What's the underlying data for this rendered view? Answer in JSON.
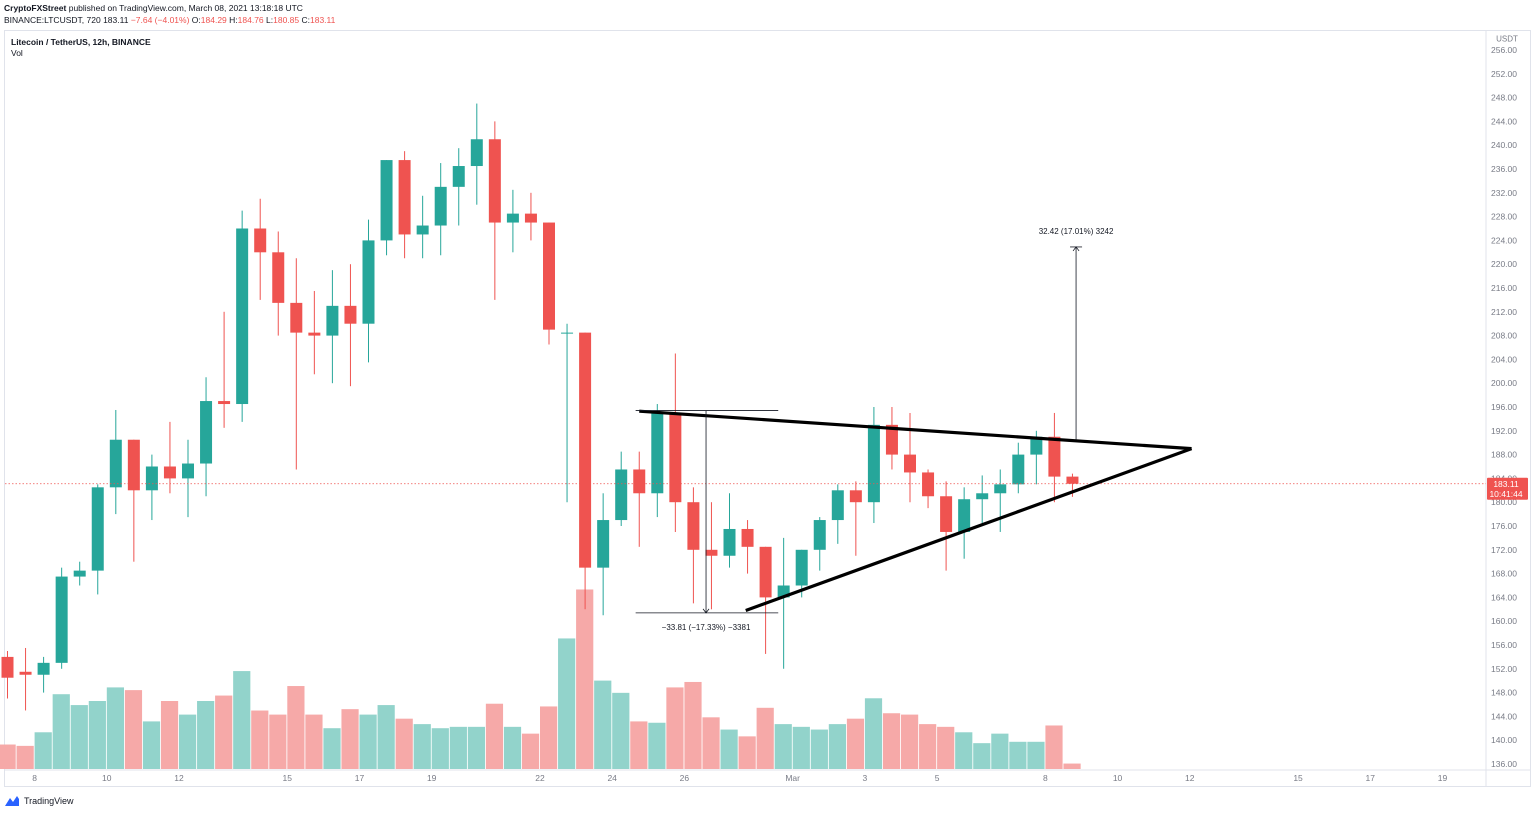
{
  "header": {
    "publisher": "CryptoFXStreet",
    "published_text": "published on TradingView.com, March 08, 2021 13:18:18 UTC",
    "symbol": "BINANCE:LTCUSDT, 720",
    "last": "183.11",
    "change": "−7.64 (−4.01%)",
    "ohlc": {
      "o_label": "O:",
      "o": "184.29",
      "h_label": "H:",
      "h": "184.76",
      "l_label": "L:",
      "l": "180.85",
      "c_label": "C:",
      "c": "183.11"
    }
  },
  "pane": {
    "title": "Litecoin / TetherUS, 12h, BINANCE",
    "vol_label": "Vol"
  },
  "footer": {
    "brand": "TradingView",
    "icon": "tradingview-logo-icon"
  },
  "colors": {
    "up": "#26a69a",
    "down": "#ef5350",
    "vol_up": "#92d3cb",
    "vol_down": "#f6a9a8",
    "price_line": "#ef5350",
    "text": "#131722",
    "axis": "#787b86"
  },
  "chart_data": {
    "type": "candlestick",
    "title": "Litecoin / TetherUS, 12h, BINANCE",
    "currency": "USDT",
    "ylim": [
      136,
      256
    ],
    "y_ticks": [
      "256.00",
      "252.00",
      "248.00",
      "244.00",
      "240.00",
      "236.00",
      "232.00",
      "228.00",
      "224.00",
      "220.00",
      "216.00",
      "212.00",
      "208.00",
      "204.00",
      "200.00",
      "196.00",
      "192.00",
      "188.00",
      "184.00",
      "180.00",
      "176.00",
      "172.00",
      "168.00",
      "164.00",
      "160.00",
      "156.00",
      "152.00",
      "148.00",
      "144.00",
      "140.00",
      "136.00"
    ],
    "x_ticks": [
      {
        "label": "8",
        "i": 1.5
      },
      {
        "label": "10",
        "i": 5.5
      },
      {
        "label": "12",
        "i": 9.5
      },
      {
        "label": "15",
        "i": 15.5
      },
      {
        "label": "17",
        "i": 19.5
      },
      {
        "label": "19",
        "i": 23.5
      },
      {
        "label": "22",
        "i": 29.5
      },
      {
        "label": "24",
        "i": 33.5
      },
      {
        "label": "26",
        "i": 37.5
      },
      {
        "label": "Mar",
        "i": 43.5
      },
      {
        "label": "3",
        "i": 47.5
      },
      {
        "label": "5",
        "i": 51.5
      },
      {
        "label": "8",
        "i": 57.5
      },
      {
        "label": "10",
        "i": 61.5
      },
      {
        "label": "12",
        "i": 65.5
      },
      {
        "label": "15",
        "i": 71.5
      },
      {
        "label": "17",
        "i": 75.5
      },
      {
        "label": "19",
        "i": 79.5
      }
    ],
    "candles": [
      {
        "o": 154,
        "h": 155,
        "l": 147,
        "c": 150.5,
        "v": 0.18
      },
      {
        "o": 151.5,
        "h": 155.5,
        "l": 145,
        "c": 151,
        "v": 0.17
      },
      {
        "o": 151,
        "h": 154,
        "l": 148,
        "c": 153,
        "v": 0.27
      },
      {
        "o": 153,
        "h": 169,
        "l": 152,
        "c": 167.5,
        "v": 0.55
      },
      {
        "o": 167.5,
        "h": 170,
        "l": 166,
        "c": 168.5,
        "v": 0.47
      },
      {
        "o": 168.5,
        "h": 183,
        "l": 164.5,
        "c": 182.5,
        "v": 0.5
      },
      {
        "o": 182.5,
        "h": 195.5,
        "l": 178,
        "c": 190.5,
        "v": 0.6
      },
      {
        "o": 190.5,
        "h": 190.5,
        "l": 170,
        "c": 182,
        "v": 0.58
      },
      {
        "o": 182,
        "h": 188,
        "l": 177,
        "c": 186,
        "v": 0.35
      },
      {
        "o": 186,
        "h": 193.5,
        "l": 181.5,
        "c": 184,
        "v": 0.5
      },
      {
        "o": 184,
        "h": 190.5,
        "l": 177.5,
        "c": 186.5,
        "v": 0.4
      },
      {
        "o": 186.5,
        "h": 201,
        "l": 181,
        "c": 197,
        "v": 0.5
      },
      {
        "o": 197,
        "h": 212,
        "l": 192.5,
        "c": 196.5,
        "v": 0.54
      },
      {
        "o": 196.5,
        "h": 229,
        "l": 193.5,
        "c": 226,
        "v": 0.72
      },
      {
        "o": 226,
        "h": 231,
        "l": 214,
        "c": 222,
        "v": 0.43
      },
      {
        "o": 222,
        "h": 225.5,
        "l": 208,
        "c": 213.5,
        "v": 0.4
      },
      {
        "o": 213.5,
        "h": 221,
        "l": 185.5,
        "c": 208.5,
        "v": 0.61
      },
      {
        "o": 208.5,
        "h": 215.5,
        "l": 201.5,
        "c": 208,
        "v": 0.4
      },
      {
        "o": 208,
        "h": 219,
        "l": 200,
        "c": 213,
        "v": 0.3
      },
      {
        "o": 213,
        "h": 220,
        "l": 199.5,
        "c": 210,
        "v": 0.44
      },
      {
        "o": 210,
        "h": 227.5,
        "l": 203.5,
        "c": 224,
        "v": 0.4
      },
      {
        "o": 224,
        "h": 237.5,
        "l": 221.5,
        "c": 237.5,
        "v": 0.47
      },
      {
        "o": 237.5,
        "h": 239,
        "l": 221,
        "c": 225,
        "v": 0.37
      },
      {
        "o": 225,
        "h": 231.5,
        "l": 221,
        "c": 226.5,
        "v": 0.33
      },
      {
        "o": 226.5,
        "h": 237,
        "l": 221.5,
        "c": 233,
        "v": 0.3
      },
      {
        "o": 233,
        "h": 239.5,
        "l": 226.5,
        "c": 236.5,
        "v": 0.31
      },
      {
        "o": 236.5,
        "h": 247,
        "l": 230,
        "c": 241,
        "v": 0.31
      },
      {
        "o": 241,
        "h": 244,
        "l": 214,
        "c": 227,
        "v": 0.48
      },
      {
        "o": 227,
        "h": 232.5,
        "l": 222,
        "c": 228.5,
        "v": 0.31
      },
      {
        "o": 228.5,
        "h": 232,
        "l": 224,
        "c": 227,
        "v": 0.26
      },
      {
        "o": 227,
        "h": 227,
        "l": 206.5,
        "c": 209,
        "v": 0.46
      },
      {
        "o": 208.5,
        "h": 210,
        "l": 180,
        "c": 208.5,
        "v": 0.96
      },
      {
        "o": 208.5,
        "h": 208.5,
        "l": 162,
        "c": 169,
        "v": 1.32
      },
      {
        "o": 169,
        "h": 181.5,
        "l": 161,
        "c": 177,
        "v": 0.65
      },
      {
        "o": 177,
        "h": 188.5,
        "l": 176,
        "c": 185.5,
        "v": 0.56
      },
      {
        "o": 185.5,
        "h": 188.5,
        "l": 172.5,
        "c": 181.5,
        "v": 0.35
      },
      {
        "o": 181.5,
        "h": 196.5,
        "l": 177.5,
        "c": 195,
        "v": 0.34
      },
      {
        "o": 195,
        "h": 205,
        "l": 175,
        "c": 180,
        "v": 0.6
      },
      {
        "o": 180,
        "h": 182.5,
        "l": 163,
        "c": 172,
        "v": 0.64
      },
      {
        "o": 172,
        "h": 180,
        "l": 162,
        "c": 171,
        "v": 0.38
      },
      {
        "o": 171,
        "h": 181.5,
        "l": 169,
        "c": 175.5,
        "v": 0.29
      },
      {
        "o": 175.5,
        "h": 177,
        "l": 168,
        "c": 172.5,
        "v": 0.24
      },
      {
        "o": 172.5,
        "h": 172.5,
        "l": 154.5,
        "c": 164,
        "v": 0.45
      },
      {
        "o": 164,
        "h": 174,
        "l": 152,
        "c": 166,
        "v": 0.33
      },
      {
        "o": 166,
        "h": 172,
        "l": 164,
        "c": 172,
        "v": 0.31
      },
      {
        "o": 172,
        "h": 177.5,
        "l": 168.5,
        "c": 177,
        "v": 0.29
      },
      {
        "o": 177,
        "h": 183,
        "l": 173,
        "c": 182,
        "v": 0.33
      },
      {
        "o": 182,
        "h": 183.5,
        "l": 171,
        "c": 180,
        "v": 0.37
      },
      {
        "o": 180,
        "h": 196,
        "l": 176.5,
        "c": 193,
        "v": 0.52
      },
      {
        "o": 193,
        "h": 196,
        "l": 185.5,
        "c": 188,
        "v": 0.41
      },
      {
        "o": 188,
        "h": 195,
        "l": 180,
        "c": 185,
        "v": 0.4
      },
      {
        "o": 185,
        "h": 185.5,
        "l": 179,
        "c": 181,
        "v": 0.33
      },
      {
        "o": 181,
        "h": 183.5,
        "l": 168.5,
        "c": 175,
        "v": 0.31
      },
      {
        "o": 175,
        "h": 182.5,
        "l": 170.5,
        "c": 180.5,
        "v": 0.27
      },
      {
        "o": 180.5,
        "h": 184.5,
        "l": 176.5,
        "c": 181.5,
        "v": 0.19
      },
      {
        "o": 181.5,
        "h": 185.5,
        "l": 175,
        "c": 183,
        "v": 0.26
      },
      {
        "o": 183,
        "h": 190,
        "l": 181.5,
        "c": 188,
        "v": 0.2
      },
      {
        "o": 188,
        "h": 192,
        "l": 183,
        "c": 191,
        "v": 0.2
      },
      {
        "o": 191,
        "h": 195,
        "l": 180,
        "c": 184.3,
        "v": 0.32
      },
      {
        "o": 184.3,
        "h": 184.8,
        "l": 180.9,
        "c": 183.1,
        "v": 0.04
      }
    ],
    "annotations": {
      "down_measure_label": "−33.81 (−17.33%) −3381",
      "up_measure_label": "32.42 (17.01%) 3242",
      "price_label": "183.11",
      "countdown_label": "10:41:44",
      "currency_label": "USDT"
    }
  }
}
